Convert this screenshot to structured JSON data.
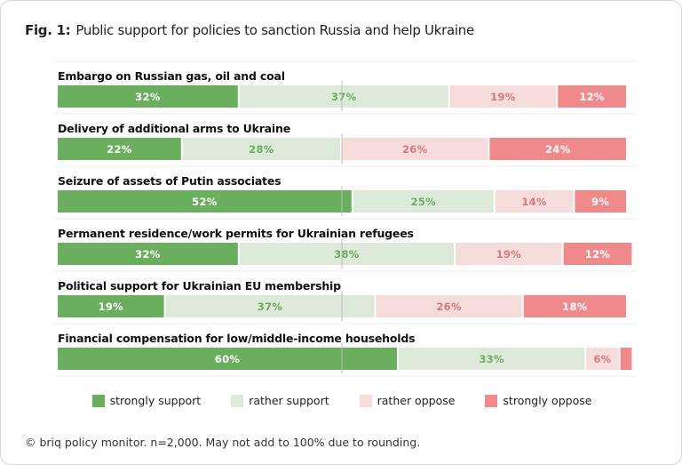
{
  "title": {
    "prefix": "Fig. 1:",
    "text": "Public support for policies to sanction Russia and help Ukraine"
  },
  "footer": "© briq policy monitor. n=2,000. May not add to 100% due to rounding.",
  "chart_data": {
    "type": "bar",
    "orientation": "horizontal",
    "stacked": true,
    "xlim": [
      0,
      100
    ],
    "unit": "%",
    "reference_line": 50,
    "legend_position": "bottom",
    "categories": [
      "Embargo on Russian gas, oil and coal",
      "Delivery of additional arms to Ukraine",
      "Seizure of assets of Putin associates",
      "Permanent residence/work permits for Ukrainian refugees",
      "Political support for Ukrainian EU membership",
      "Financial compensation for low/middle-income households"
    ],
    "series": [
      {
        "name": "strongly support",
        "color": "#6aaf5e",
        "label_color": "#ffffff",
        "values": [
          32,
          22,
          52,
          32,
          19,
          60
        ]
      },
      {
        "name": "rather support",
        "color": "#dde9d9",
        "label_color": "#6aaf5e",
        "values": [
          37,
          28,
          25,
          38,
          37,
          33
        ]
      },
      {
        "name": "rather oppose",
        "color": "#f7dcdc",
        "label_color": "#d9777a",
        "values": [
          19,
          26,
          14,
          19,
          26,
          6
        ]
      },
      {
        "name": "strongly oppose",
        "color": "#f08a8a",
        "label_color": "#ffffff",
        "values": [
          12,
          24,
          9,
          12,
          18,
          2
        ],
        "labeled": [
          true,
          true,
          true,
          true,
          true,
          false
        ]
      }
    ]
  }
}
